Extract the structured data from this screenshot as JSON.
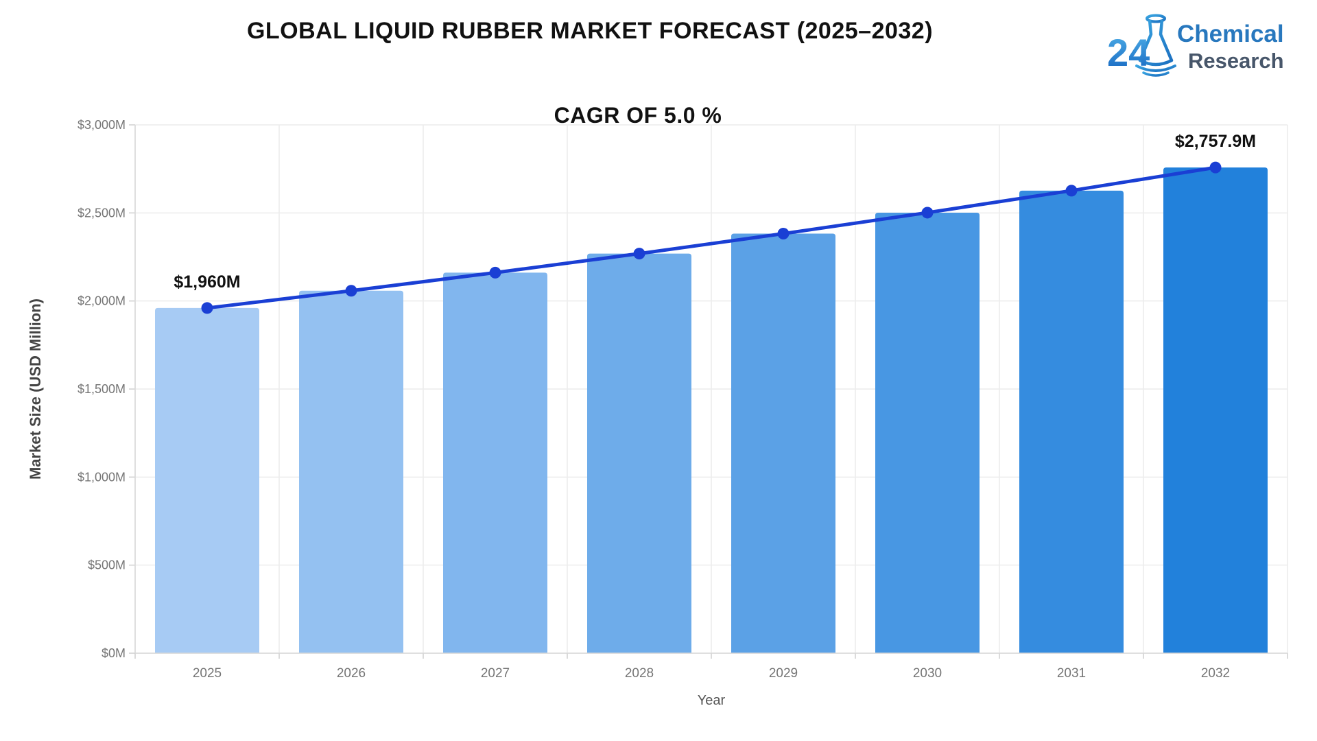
{
  "header": {
    "title": "GLOBAL LIQUID RUBBER MARKET FORECAST (2025–2032)",
    "logo": {
      "number": "24",
      "word1": "Chemical",
      "word2": "Research"
    }
  },
  "chart_data": {
    "type": "bar",
    "overlay": "line",
    "title": "GLOBAL LIQUID RUBBER MARKET FORECAST (2025–2032)",
    "subtitle": "CAGR OF 5.0 %",
    "xlabel": "Year",
    "ylabel": "Market Size (USD Million)",
    "categories": [
      "2025",
      "2026",
      "2027",
      "2028",
      "2029",
      "2030",
      "2031",
      "2032"
    ],
    "series": [
      {
        "name": "Market Size bars",
        "type": "bar",
        "values": [
          1960,
          2058,
          2160.9,
          2268.9,
          2382.4,
          2501.5,
          2626.6,
          2757.9
        ]
      },
      {
        "name": "Market Size trend line",
        "type": "line",
        "values": [
          1960,
          2058,
          2160.9,
          2268.9,
          2382.4,
          2501.5,
          2626.6,
          2757.9
        ]
      }
    ],
    "annotations": [
      {
        "category": "2025",
        "index": 0,
        "label": "$1,960M"
      },
      {
        "category": "2032",
        "index": 7,
        "label": "$2,757.9M"
      }
    ],
    "ylim": [
      0,
      3000
    ],
    "yticks": [
      {
        "value": 0,
        "label": "$0M"
      },
      {
        "value": 500,
        "label": "$500M"
      },
      {
        "value": 1000,
        "label": "$1,000M"
      },
      {
        "value": 1500,
        "label": "$1,500M"
      },
      {
        "value": 2000,
        "label": "$2,000M"
      },
      {
        "value": 2500,
        "label": "$2,500M"
      },
      {
        "value": 3000,
        "label": "$3,000M"
      }
    ],
    "grid": true,
    "legend": false,
    "colors": {
      "bars": [
        "#A7CBF4",
        "#94C1F1",
        "#81B6EE",
        "#6EACEA",
        "#5BA1E6",
        "#4897E3",
        "#358CDF",
        "#2281DB"
      ],
      "line": "#1A3FD4",
      "grid": "#ECECEC",
      "axis": "#D8D8D8",
      "tick": "#CFCFCF",
      "tick_text": "#757575",
      "annotation_text": "#111111"
    }
  }
}
